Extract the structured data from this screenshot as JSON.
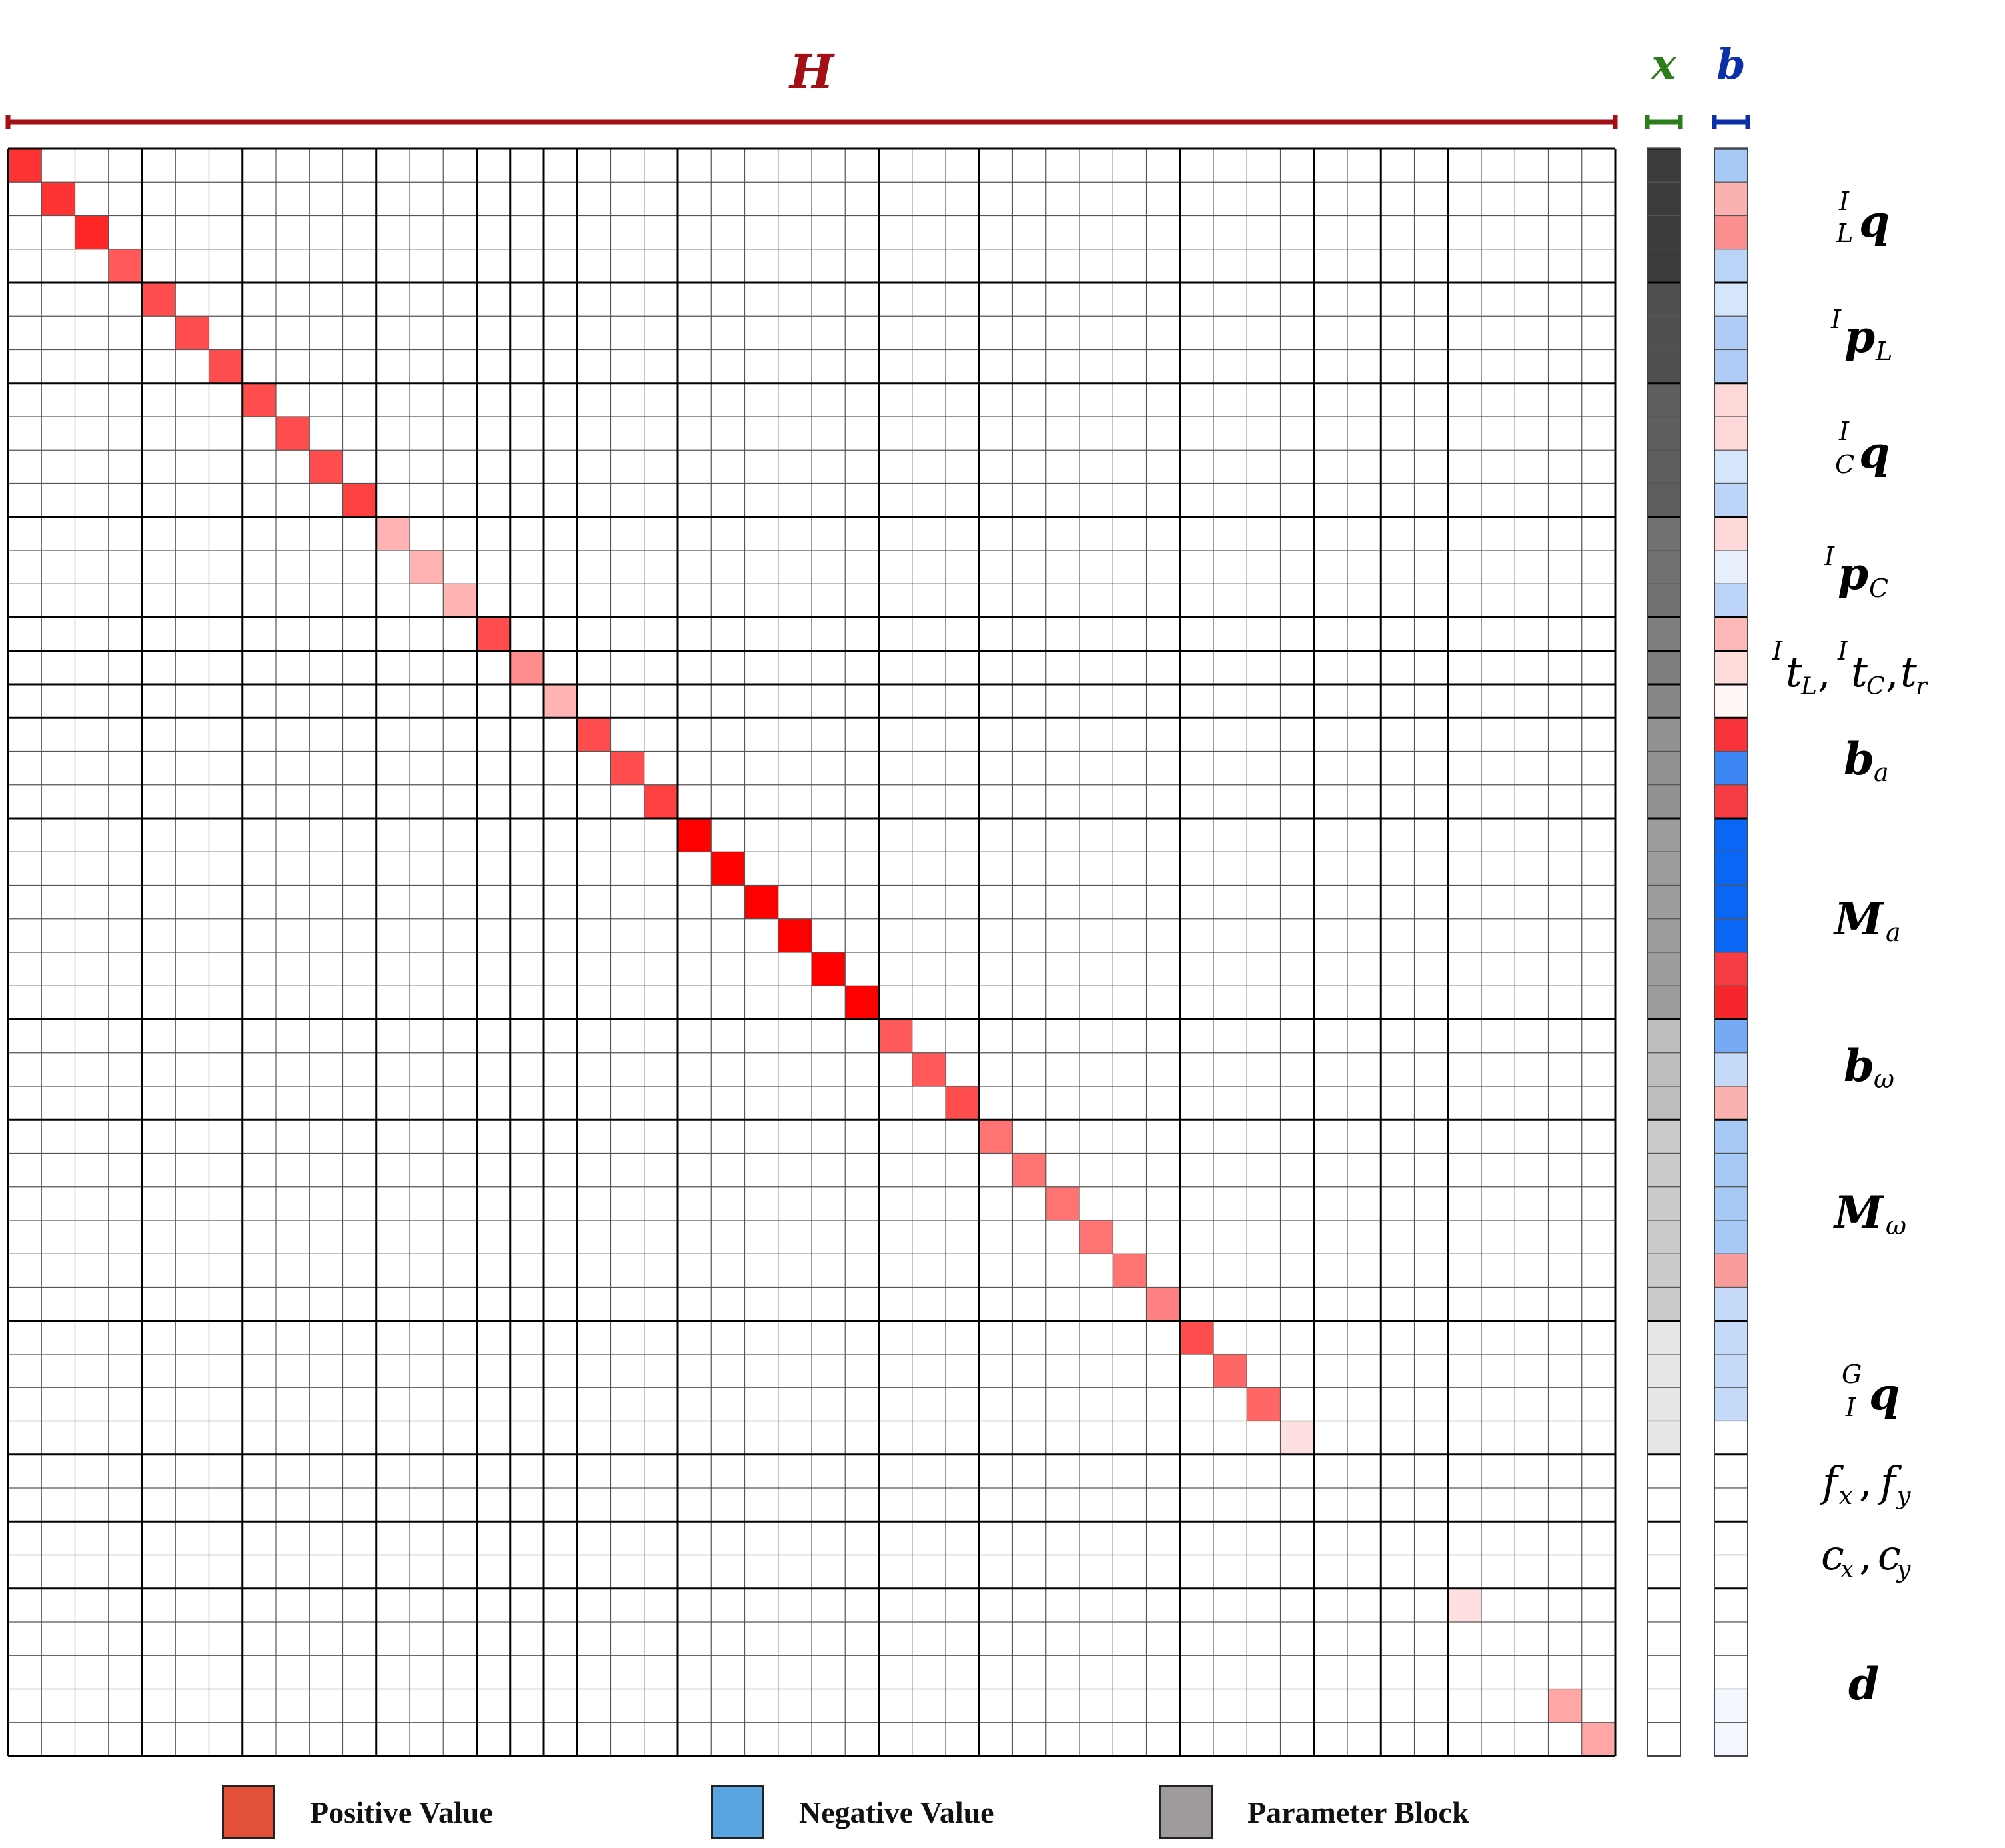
{
  "title_H": "H",
  "title_x": "x",
  "title_b": "b",
  "colors": {
    "H": "#a30f14",
    "x": "#2e7d1b",
    "b": "#0b2fa8",
    "positive": "#e2503a",
    "negative": "#5aa5e0",
    "parameter": "#a09b9b"
  },
  "matrix": {
    "size": 48,
    "block_boundaries": [
      4,
      7,
      11,
      14,
      15,
      16,
      17,
      20,
      26,
      29,
      35,
      39,
      41,
      43,
      48
    ],
    "diagonal_intensity": [
      0.8,
      0.8,
      0.85,
      0.65,
      0.7,
      0.7,
      0.7,
      0.7,
      0.7,
      0.7,
      0.75,
      0.3,
      0.3,
      0.3,
      0.7,
      0.45,
      0.3,
      0.7,
      0.7,
      0.75,
      1,
      1,
      1,
      1,
      1,
      1,
      0.65,
      0.65,
      0.7,
      0.55,
      0.55,
      0.55,
      0.55,
      0.55,
      0.5,
      0.7,
      0.6,
      0.6,
      0.12,
      0,
      0,
      0,
      0,
      0,
      0,
      0,
      0,
      0
    ],
    "offdiagonal": [
      {
        "row": 43,
        "col": 43,
        "v": 0.12
      },
      {
        "row": 46,
        "col": 46,
        "v": 0.35
      },
      {
        "row": 47,
        "col": 47,
        "v": 0.35
      }
    ]
  },
  "x_vector": [
    "#3c3c3c",
    "#3c3c3c",
    "#3c3c3c",
    "#3c3c3c",
    "#505050",
    "#505050",
    "#505050",
    "#5e5e5e",
    "#5e5e5e",
    "#5e5e5e",
    "#5e5e5e",
    "#717171",
    "#717171",
    "#717171",
    "#7e7e7e",
    "#7e7e7e",
    "#878787",
    "#929292",
    "#929292",
    "#929292",
    "#9c9c9c",
    "#9c9c9c",
    "#9c9c9c",
    "#9c9c9c",
    "#9c9c9c",
    "#9c9c9c",
    "#bdbdbd",
    "#bdbdbd",
    "#bdbdbd",
    "#cbcbcb",
    "#cbcbcb",
    "#cbcbcb",
    "#cbcbcb",
    "#cbcbcb",
    "#cbcbcb",
    "#e6e6e6",
    "#e6e6e6",
    "#e6e6e6",
    "#e6e6e6",
    "#ffffff",
    "#ffffff",
    "#ffffff",
    "#ffffff",
    "#ffffff",
    "#ffffff",
    "#ffffff",
    "#ffffff",
    "#ffffff"
  ],
  "b_vector": [
    "#a7c9f5",
    "#fcb1b1",
    "#fb8e8e",
    "#b9d4f7",
    "#d6e6fa",
    "#b0ccf6",
    "#b0ccf6",
    "#fed8d8",
    "#fed8d8",
    "#d6e6fa",
    "#bcd4f7",
    "#fed8d8",
    "#e8f0fc",
    "#bcd4f7",
    "#fcb7b7",
    "#fedcdc",
    "#fff6f6",
    "#f8343a",
    "#3b85f5",
    "#f73d43",
    "#0a66f5",
    "#0a66f5",
    "#0a66f5",
    "#0a66f5",
    "#f73d43",
    "#f5272c",
    "#77aaf5",
    "#c5d9f8",
    "#fcb1b1",
    "#a7c9f5",
    "#a7c9f5",
    "#a7c9f5",
    "#a7c9f5",
    "#fb9c9c",
    "#c5d9f8",
    "#c5d9f8",
    "#c5d9f8",
    "#c5d9f8",
    "#ffffff",
    "#ffffff",
    "#ffffff",
    "#ffffff",
    "#ffffff",
    "#ffffff",
    "#ffffff",
    "#ffffff",
    "#f4f8fe",
    "#f4f8fe"
  ],
  "row_labels": [
    {
      "sup": "I",
      "sub": "L",
      "main": "q",
      "text": "ILq"
    },
    {
      "sup": "I",
      "sub": "L",
      "main": "p",
      "text": "IpL"
    },
    {
      "sup": "I",
      "sub": "C",
      "main": "q",
      "text": "ICq"
    },
    {
      "sup": "I",
      "sub": "C",
      "main": "p",
      "text": "IpC"
    },
    {
      "text": "ItL, ItC, tr"
    },
    {
      "main": "b",
      "sub": "a",
      "text": "ba"
    },
    {
      "main": "M",
      "sub": "a",
      "text": "Ma"
    },
    {
      "main": "b",
      "sub": "ω",
      "text": "bω"
    },
    {
      "main": "M",
      "sub": "ω",
      "text": "Mω"
    },
    {
      "sup": "G",
      "sub": "I",
      "main": "q",
      "text": "GIq"
    },
    {
      "text": "fx, fy"
    },
    {
      "text": "cx, cy"
    },
    {
      "main": "d",
      "text": "d"
    }
  ],
  "legend": [
    {
      "label": "Positive Value"
    },
    {
      "label": "Negative Value"
    },
    {
      "label": "Parameter Block"
    }
  ]
}
